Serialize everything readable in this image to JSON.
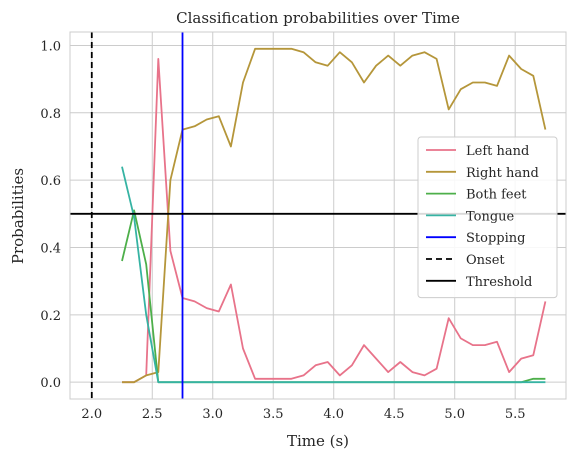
{
  "chart_data": {
    "type": "line",
    "title": "Classification probabilities over Time",
    "xlabel": "Time (s)",
    "ylabel": "Probabilities",
    "xlim": [
      1.82,
      5.92
    ],
    "ylim": [
      -0.05,
      1.04
    ],
    "xticks": [
      2.0,
      2.5,
      3.0,
      3.5,
      4.0,
      4.5,
      5.0,
      5.5
    ],
    "xtick_labels": [
      "2.0",
      "2.5",
      "3.0",
      "3.5",
      "4.0",
      "4.5",
      "5.0",
      "5.5"
    ],
    "yticks": [
      0.0,
      0.2,
      0.4,
      0.6,
      0.8,
      1.0
    ],
    "ytick_labels": [
      "0.0",
      "0.2",
      "0.4",
      "0.6",
      "0.8",
      "1.0"
    ],
    "grid": true,
    "legend_position": "center-right",
    "x": [
      2.25,
      2.35,
      2.45,
      2.55,
      2.65,
      2.75,
      2.85,
      2.95,
      3.05,
      3.15,
      3.25,
      3.35,
      3.45,
      3.55,
      3.65,
      3.75,
      3.85,
      3.95,
      4.05,
      4.15,
      4.25,
      4.35,
      4.45,
      4.55,
      4.65,
      4.75,
      4.85,
      4.95,
      5.05,
      5.15,
      5.25,
      5.35,
      5.45,
      5.55,
      5.65,
      5.75
    ],
    "series": [
      {
        "name": "Left hand",
        "color": "#e8738a",
        "values": [
          0.0,
          0.0,
          0.02,
          0.96,
          0.39,
          0.25,
          0.24,
          0.22,
          0.21,
          0.29,
          0.1,
          0.01,
          0.01,
          0.01,
          0.01,
          0.02,
          0.05,
          0.06,
          0.02,
          0.05,
          0.11,
          0.07,
          0.03,
          0.06,
          0.03,
          0.02,
          0.04,
          0.19,
          0.13,
          0.11,
          0.11,
          0.12,
          0.03,
          0.07,
          0.08,
          0.24
        ]
      },
      {
        "name": "Right hand",
        "color": "#b5963a",
        "values": [
          0.0,
          0.0,
          0.02,
          0.03,
          0.6,
          0.75,
          0.76,
          0.78,
          0.79,
          0.7,
          0.89,
          0.99,
          0.99,
          0.99,
          0.99,
          0.98,
          0.95,
          0.94,
          0.98,
          0.95,
          0.89,
          0.94,
          0.97,
          0.94,
          0.97,
          0.98,
          0.96,
          0.81,
          0.87,
          0.89,
          0.89,
          0.88,
          0.97,
          0.93,
          0.91,
          0.75
        ]
      },
      {
        "name": "Both feet",
        "color": "#4daf4a",
        "values": [
          0.36,
          0.51,
          0.35,
          0.0,
          0.0,
          0.0,
          0.0,
          0.0,
          0.0,
          0.0,
          0.0,
          0.0,
          0.0,
          0.0,
          0.0,
          0.0,
          0.0,
          0.0,
          0.0,
          0.0,
          0.0,
          0.0,
          0.0,
          0.0,
          0.0,
          0.0,
          0.0,
          0.0,
          0.0,
          0.0,
          0.0,
          0.0,
          0.0,
          0.0,
          0.01,
          0.01
        ]
      },
      {
        "name": "Tongue",
        "color": "#36b3a3",
        "values": [
          0.64,
          0.49,
          0.2,
          0.0,
          0.0,
          0.0,
          0.0,
          0.0,
          0.0,
          0.0,
          0.0,
          0.0,
          0.0,
          0.0,
          0.0,
          0.0,
          0.0,
          0.0,
          0.0,
          0.0,
          0.0,
          0.0,
          0.0,
          0.0,
          0.0,
          0.0,
          0.0,
          0.0,
          0.0,
          0.0,
          0.0,
          0.0,
          0.0,
          0.0,
          0.0,
          0.0
        ]
      }
    ],
    "reference_lines": [
      {
        "name": "Stopping",
        "orientation": "vertical",
        "value": 2.75,
        "color": "#0000ff",
        "style": "solid"
      },
      {
        "name": "Onset",
        "orientation": "vertical",
        "value": 2.0,
        "color": "#000000",
        "style": "dashed"
      },
      {
        "name": "Threshold",
        "orientation": "horizontal",
        "value": 0.5,
        "color": "#000000",
        "style": "solid"
      }
    ],
    "legend": [
      {
        "label": "Left hand",
        "color": "#e8738a",
        "style": "solid"
      },
      {
        "label": "Right hand",
        "color": "#b5963a",
        "style": "solid"
      },
      {
        "label": "Both feet",
        "color": "#4daf4a",
        "style": "solid"
      },
      {
        "label": "Tongue",
        "color": "#36b3a3",
        "style": "solid"
      },
      {
        "label": "Stopping",
        "color": "#0000ff",
        "style": "solid"
      },
      {
        "label": "Onset",
        "color": "#000000",
        "style": "dashed"
      },
      {
        "label": "Threshold",
        "color": "#000000",
        "style": "solid"
      }
    ]
  }
}
